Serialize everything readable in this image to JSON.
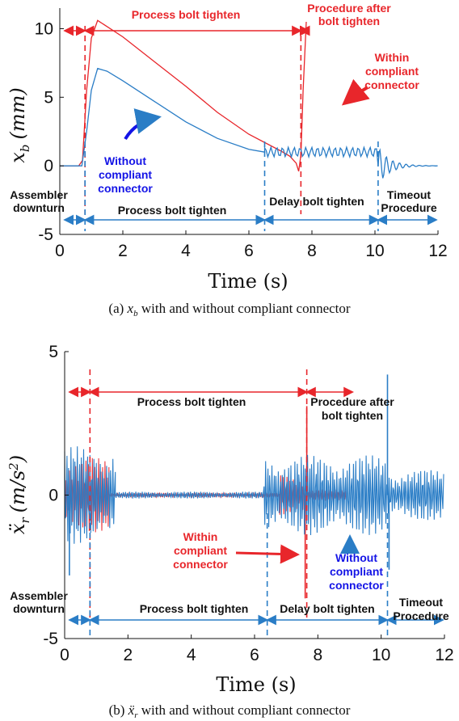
{
  "colors": {
    "red": "#e8262b",
    "blue": "#2a7dc6",
    "pure_blue": "#1414e6"
  },
  "chart_data": [
    {
      "type": "line",
      "xlabel": "Time (s)",
      "ylabel": "x_b (mm)",
      "ylabel_parts": {
        "var": "x",
        "sub": "b",
        "unit": "(mm)"
      },
      "xlim": [
        0,
        12
      ],
      "ylim": [
        -5,
        11.5
      ],
      "xticks": [
        "0",
        "2",
        "4",
        "6",
        "8",
        "10",
        "12"
      ],
      "yticks": [
        "-5",
        "0",
        "5",
        "10"
      ],
      "grid": false,
      "caption": {
        "prefix": "(a) ",
        "var": "x",
        "sub": "b",
        "rest": " with and without compliant connector"
      },
      "series": [
        {
          "color": "red",
          "x": [
            0,
            0.6,
            0.72,
            0.85,
            1.0,
            1.2,
            2,
            3,
            4,
            5,
            6,
            7,
            7.3,
            7.5,
            7.58,
            7.65,
            7.72,
            7.82
          ],
          "y": [
            0,
            0,
            0.4,
            5.5,
            9.3,
            10.6,
            9.4,
            7.6,
            5.8,
            3.9,
            2.3,
            1.1,
            0.7,
            0.2,
            -0.4,
            0.8,
            5.5,
            10.5
          ]
        },
        {
          "color": "blue",
          "x": [
            0,
            0.7,
            0.85,
            1.0,
            1.2,
            1.5,
            2,
            3,
            4,
            5,
            6,
            6.5
          ],
          "y": [
            0,
            0,
            2.5,
            5.5,
            7.1,
            6.9,
            6.2,
            4.7,
            3.2,
            2.0,
            1.2,
            1.0
          ],
          "oscillation": {
            "from": 6.5,
            "to": 10.1,
            "center": 1.0,
            "amplitude": 0.35
          },
          "decay": {
            "from": 10.1,
            "to": 12,
            "amplitude": 1.4
          }
        }
      ],
      "annotations": {
        "top_process": "Process bolt tighten",
        "top_procedure_line1": "Procedure after",
        "top_procedure_line2": "bolt tighten",
        "within_line1": "Within",
        "within_line2": "compliant",
        "within_line3": "connector",
        "without_line1": "Without",
        "without_line2": "compliant",
        "without_line3": "connector",
        "assembler_line1": "Assembler",
        "assembler_line2": "downturn",
        "process": "Process bolt tighten",
        "delay": "Delay bolt tighten",
        "timeout_line1": "Timeout",
        "timeout_line2": "Procedure"
      },
      "dividers": {
        "red": [
          0.8,
          7.65
        ],
        "blue": [
          0.8,
          6.5,
          10.1
        ]
      }
    },
    {
      "type": "line",
      "xlabel": "Time (s)",
      "ylabel": "ẍ_r (m/s^2)",
      "ylabel_parts": {
        "var": "ẍ",
        "sub": "r",
        "unit": "(m/s",
        "sup": "2",
        "unit_close": ")"
      },
      "xlim": [
        0,
        12
      ],
      "ylim": [
        -5,
        5
      ],
      "xticks": [
        "0",
        "2",
        "4",
        "6",
        "8",
        "10",
        "12"
      ],
      "yticks": [
        "-5",
        "0",
        "5"
      ],
      "grid": false,
      "caption": {
        "prefix": "(b) ",
        "var": "ẍ",
        "sub": "r",
        "rest": " with and without compliant connector"
      },
      "series": [
        {
          "color": "red",
          "bursts": [
            {
              "from": 0,
              "to": 1.4,
              "amplitude": 1.3
            },
            {
              "from": 1.4,
              "to": 6.8,
              "amplitude": 0.08
            },
            {
              "from": 6.8,
              "to": 7.6,
              "amplitude": 0.8
            },
            {
              "from": 7.6,
              "to": 8.9,
              "amplitude": 0.2
            }
          ],
          "spikes": [
            {
              "x": 7.6,
              "y": -3.6
            },
            {
              "x": 7.65,
              "y": 3.1
            }
          ]
        },
        {
          "color": "blue",
          "bursts": [
            {
              "from": 0,
              "to": 1.6,
              "amplitude": 1.7
            },
            {
              "from": 1.6,
              "to": 6.3,
              "amplitude": 0.12
            },
            {
              "from": 6.3,
              "to": 10.2,
              "amplitude": 1.4
            },
            {
              "from": 10.2,
              "to": 12,
              "amplitude": 0.9
            }
          ],
          "spikes": [
            {
              "x": 10.2,
              "y": 4.2
            },
            {
              "x": 10.25,
              "y": -2.6
            },
            {
              "x": 0.15,
              "y": -2.8
            }
          ]
        }
      ],
      "annotations": {
        "top_process": "Process bolt tighten",
        "top_procedure_line1": "Procedure after",
        "top_procedure_line2": "bolt tighten",
        "within_line1": "Within",
        "within_line2": "compliant",
        "within_line3": "connector",
        "without_line1": "Without",
        "without_line2": "compliant",
        "without_line3": "connector",
        "assembler_line1": "Assembler",
        "assembler_line2": "downturn",
        "process": "Process bolt tighten",
        "delay": "Delay bolt tighten",
        "timeout_line1": "Timeout",
        "timeout_line2": "Procedure"
      },
      "dividers": {
        "red": [
          0.8,
          7.65
        ],
        "blue": [
          0.8,
          6.4,
          10.2
        ]
      }
    }
  ]
}
